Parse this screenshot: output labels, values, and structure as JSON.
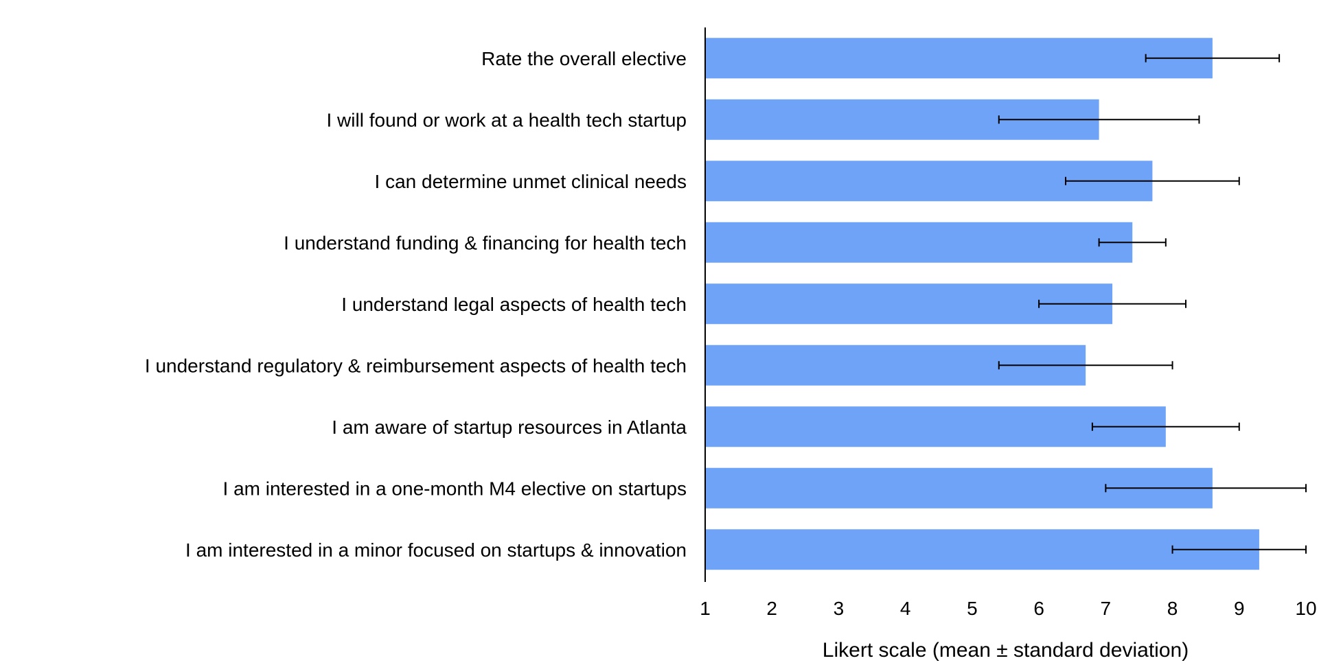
{
  "chart_data": {
    "type": "bar",
    "orientation": "horizontal",
    "categories": [
      "Rate the overall elective",
      "I will found or work at a health tech startup",
      "I can determine unmet clinical needs",
      "I understand funding & financing for health tech",
      "I understand legal aspects of health tech",
      "I understand regulatory & reimbursement aspects of health tech",
      "I am aware of startup resources in Atlanta",
      "I am interested in a one-month M4 elective on startups",
      "I am interested in a minor focused on startups & innovation"
    ],
    "values": [
      8.6,
      6.9,
      7.7,
      7.4,
      7.1,
      6.7,
      7.9,
      8.6,
      9.3
    ],
    "error": [
      1.0,
      1.5,
      1.3,
      0.5,
      1.1,
      1.3,
      1.1,
      1.6,
      1.3
    ],
    "xlim": [
      1,
      10
    ],
    "ticks": [
      "1",
      "2",
      "3",
      "4",
      "5",
      "6",
      "7",
      "8",
      "9",
      "10"
    ],
    "xlabel": "Likert scale (mean ± standard deviation)",
    "ylabel": "",
    "title": "",
    "grid": false,
    "legend": "none",
    "bar_color": "#6FA3F7",
    "error_bar_color": "#000000"
  }
}
